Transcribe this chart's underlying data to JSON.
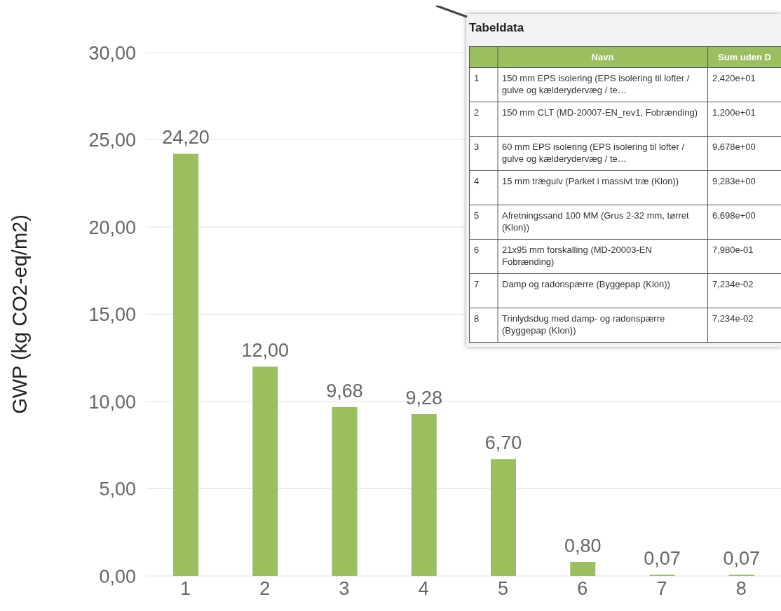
{
  "chart_data": [
    {
      "type": "bar",
      "ylabel": "GWP (kg CO2-eq/m2)",
      "categories": [
        "1",
        "2",
        "3",
        "4",
        "5",
        "6",
        "7",
        "8"
      ],
      "values": [
        24.2,
        12.0,
        9.68,
        9.28,
        6.7,
        0.8,
        0.07,
        0.07
      ],
      "color": "#9bbf5f",
      "value_labels": [
        "24,20",
        "12,00",
        "9,68",
        "9,28",
        "6,70",
        "0,80",
        "0,07",
        "0,07"
      ],
      "ylim": [
        0,
        30
      ],
      "yticks": [
        {
          "value": 0,
          "label": "0,00"
        },
        {
          "value": 5,
          "label": "5,00"
        },
        {
          "value": 10,
          "label": "10,00"
        },
        {
          "value": 15,
          "label": "15,00"
        },
        {
          "value": 20,
          "label": "20,00"
        },
        {
          "value": 25,
          "label": "25,00"
        },
        {
          "value": 30,
          "label": "30,00"
        }
      ],
      "grid": "y"
    },
    {
      "type": "other",
      "title": "Tabeldata",
      "annotations": [
        "Navn",
        "Sum uden D",
        "1",
        "150 mm EPS isolering (EPS isolering til lofter / gulve og kælderydervæg / te…",
        "2,420e+01",
        "2",
        "150 mm CLT (MD-20007-EN_rev1, Fobrænding)",
        "1,200e+01",
        "3",
        "60 mm EPS isolering (EPS isolering til lofter / gulve og kælderydervæg / te…",
        "9,678e+00",
        "4",
        "15 mm trægulv (Parket i massivt træ (Klon))",
        "9,283e+00",
        "5",
        "Afretningssand 100 MM (Grus 2-32 mm, tørret (Klon))",
        "6,698e+00",
        "6",
        "21x95 mm forskalling (MD-20003-EN Fobrænding)",
        "7,980e-01",
        "7",
        "Damp og radonspærre (Byggepap (Klon))",
        "7,234e-02",
        "8",
        "Trinlydsdug med damp- og radonspærre (Byggepap (Klon))",
        "7,234e-02"
      ]
    }
  ]
}
